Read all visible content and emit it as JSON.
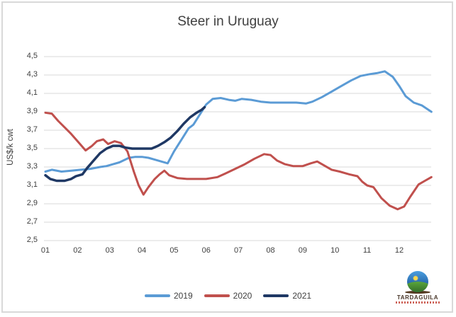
{
  "title": "Steer in Uruguay",
  "y_axis": {
    "title": "US$/k cwt",
    "tick_labels": [
      "4,5",
      "4,3",
      "4,1",
      "3,9",
      "3,7",
      "3,5",
      "3,3",
      "3,1",
      "2,9",
      "2,7",
      "2,5"
    ]
  },
  "x_axis": {
    "tick_labels": [
      "01",
      "02",
      "03",
      "04",
      "05",
      "06",
      "07",
      "08",
      "09",
      "10",
      "11",
      "12"
    ]
  },
  "legend": [
    {
      "label": "2019",
      "color": "#5B9BD5"
    },
    {
      "label": "2020",
      "color": "#C0504D"
    },
    {
      "label": "2021",
      "color": "#1F3864"
    }
  ],
  "logo": {
    "text": "TARDAGUILA"
  },
  "chart_data": {
    "type": "line",
    "title": "Steer in Uruguay",
    "xlabel": "",
    "ylabel": "US$/k cwt",
    "ylim": [
      2.5,
      4.5
    ],
    "y_tick_step": 0.2,
    "xlim": [
      1,
      13
    ],
    "x_unit": "month of year; tick m marks the start of month m, data runs to end of December (x=13)",
    "grid": true,
    "legend_position": "bottom",
    "series": [
      {
        "name": "2019",
        "color": "#5B9BD5",
        "stroke_width": 3,
        "x": [
          1.0,
          1.2,
          1.5,
          1.8,
          2.1,
          2.4,
          2.7,
          2.9,
          3.1,
          3.3,
          3.6,
          3.8,
          4.0,
          4.2,
          4.4,
          4.6,
          4.8,
          5.0,
          5.2,
          5.45,
          5.6,
          5.8,
          6.0,
          6.2,
          6.45,
          6.7,
          6.9,
          7.1,
          7.4,
          7.7,
          8.0,
          8.4,
          8.8,
          9.1,
          9.3,
          9.6,
          9.9,
          10.2,
          10.5,
          10.8,
          11.1,
          11.3,
          11.55,
          11.8,
          12.0,
          12.2,
          12.45,
          12.7,
          13.0
        ],
        "values": [
          3.25,
          3.27,
          3.25,
          3.26,
          3.27,
          3.28,
          3.3,
          3.31,
          3.33,
          3.35,
          3.4,
          3.41,
          3.41,
          3.4,
          3.38,
          3.36,
          3.34,
          3.47,
          3.58,
          3.72,
          3.76,
          3.87,
          3.98,
          4.04,
          4.05,
          4.03,
          4.02,
          4.04,
          4.03,
          4.01,
          4.0,
          4.0,
          4.0,
          3.99,
          4.01,
          4.06,
          4.12,
          4.18,
          4.24,
          4.29,
          4.31,
          4.32,
          4.34,
          4.28,
          4.18,
          4.07,
          4.0,
          3.97,
          3.9
        ]
      },
      {
        "name": "2020",
        "color": "#C0504D",
        "stroke_width": 3,
        "x": [
          1.0,
          1.2,
          1.4,
          1.6,
          1.8,
          2.0,
          2.25,
          2.45,
          2.6,
          2.8,
          2.95,
          3.15,
          3.35,
          3.55,
          3.75,
          3.9,
          4.05,
          4.2,
          4.4,
          4.55,
          4.7,
          4.85,
          5.1,
          5.4,
          5.7,
          6.0,
          6.35,
          6.6,
          6.9,
          7.2,
          7.5,
          7.8,
          8.0,
          8.2,
          8.45,
          8.7,
          9.0,
          9.25,
          9.45,
          9.65,
          9.9,
          10.15,
          10.45,
          10.7,
          10.85,
          11.0,
          11.2,
          11.45,
          11.7,
          11.95,
          12.15,
          12.35,
          12.6,
          12.8,
          13.0
        ],
        "values": [
          3.89,
          3.88,
          3.8,
          3.73,
          3.66,
          3.58,
          3.48,
          3.53,
          3.58,
          3.6,
          3.55,
          3.58,
          3.56,
          3.47,
          3.25,
          3.1,
          3.0,
          3.08,
          3.17,
          3.22,
          3.26,
          3.21,
          3.18,
          3.17,
          3.17,
          3.17,
          3.19,
          3.23,
          3.28,
          3.33,
          3.39,
          3.44,
          3.43,
          3.37,
          3.33,
          3.31,
          3.31,
          3.34,
          3.36,
          3.32,
          3.27,
          3.25,
          3.22,
          3.2,
          3.14,
          3.1,
          3.08,
          2.96,
          2.88,
          2.84,
          2.87,
          2.98,
          3.11,
          3.15,
          3.19
        ]
      },
      {
        "name": "2021",
        "color": "#1F3864",
        "stroke_width": 3.5,
        "x": [
          1.0,
          1.15,
          1.35,
          1.6,
          1.8,
          1.95,
          2.15,
          2.3,
          2.5,
          2.7,
          2.9,
          3.1,
          3.3,
          3.5,
          3.7,
          3.9,
          4.1,
          4.3,
          4.5,
          4.7,
          4.9,
          5.1,
          5.3,
          5.5,
          5.7,
          5.85,
          5.95
        ],
        "values": [
          3.21,
          3.17,
          3.15,
          3.15,
          3.17,
          3.2,
          3.22,
          3.29,
          3.37,
          3.45,
          3.5,
          3.53,
          3.53,
          3.51,
          3.5,
          3.5,
          3.5,
          3.5,
          3.53,
          3.57,
          3.62,
          3.69,
          3.77,
          3.84,
          3.89,
          3.92,
          3.95
        ]
      }
    ]
  }
}
